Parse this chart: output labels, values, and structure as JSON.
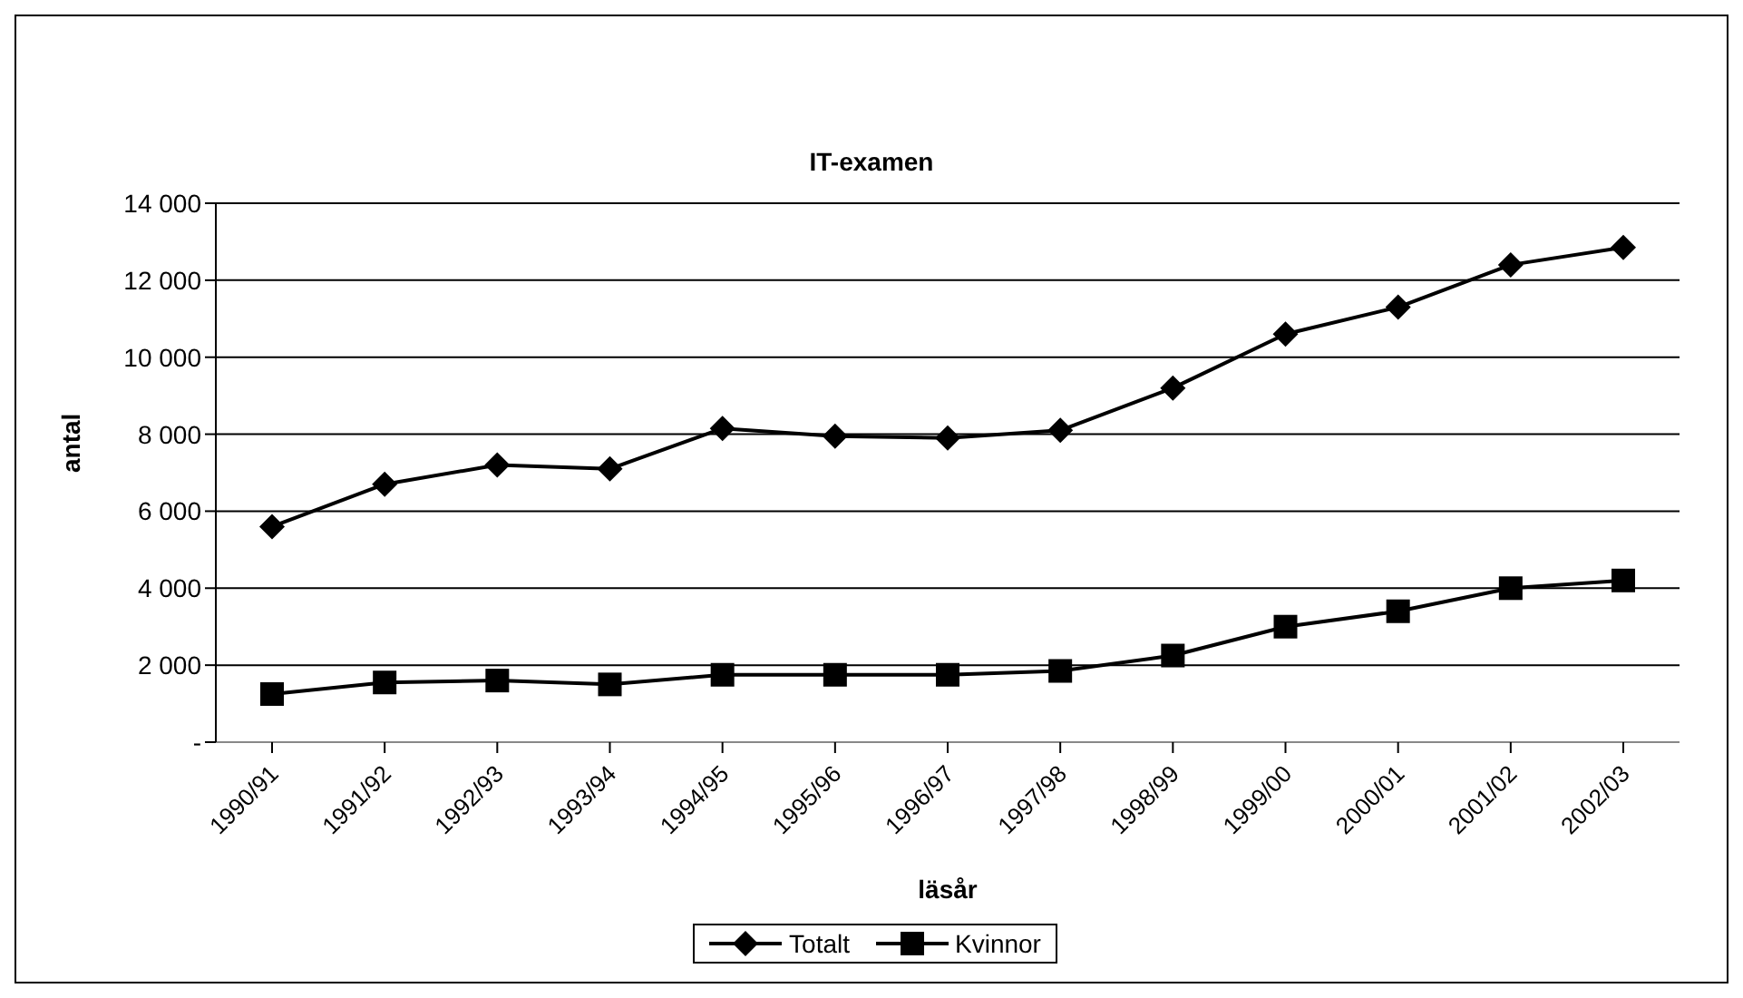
{
  "chart_data": {
    "type": "line",
    "title": "IT-examen",
    "xlabel": "läsår",
    "ylabel": "antal",
    "categories": [
      "1990/91",
      "1991/92",
      "1992/93",
      "1993/94",
      "1994/95",
      "1995/96",
      "1996/97",
      "1997/98",
      "1998/99",
      "1999/00",
      "2000/01",
      "2001/02",
      "2002/03"
    ],
    "series": [
      {
        "name": "Totalt",
        "color": "#000000",
        "marker": "diamond",
        "values": [
          5600,
          6700,
          7200,
          7100,
          8150,
          7950,
          7900,
          8100,
          9200,
          10600,
          11300,
          12400,
          12850
        ]
      },
      {
        "name": "Kvinnor",
        "color": "#000000",
        "marker": "square",
        "values": [
          1250,
          1550,
          1600,
          1500,
          1750,
          1750,
          1750,
          1850,
          2250,
          3000,
          3400,
          4000,
          4200
        ]
      }
    ],
    "ylim": [
      0,
      14000
    ],
    "yticks": [
      {
        "value": 0,
        "label": "-"
      },
      {
        "value": 2000,
        "label": "2 000"
      },
      {
        "value": 4000,
        "label": "4 000"
      },
      {
        "value": 6000,
        "label": "6 000"
      },
      {
        "value": 8000,
        "label": "8 000"
      },
      {
        "value": 10000,
        "label": "10 000"
      },
      {
        "value": 12000,
        "label": "12 000"
      },
      {
        "value": 14000,
        "label": "14 000"
      }
    ],
    "grid": "y",
    "legend": "bottom",
    "line_style": "solid"
  }
}
